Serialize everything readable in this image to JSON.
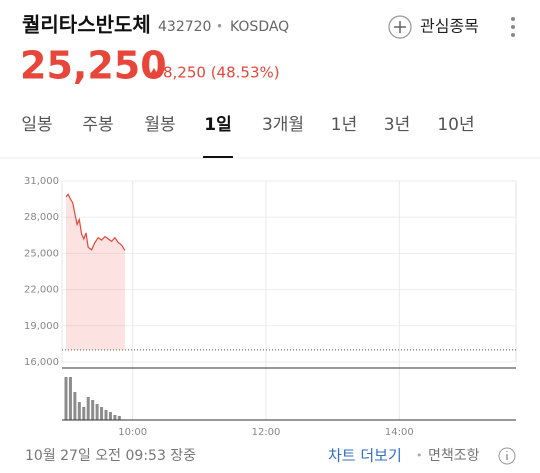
{
  "header": {
    "name": "퀄리타스반도체",
    "code": "432720",
    "separator": "•",
    "market": "KOSDAQ",
    "watch": "관심종목"
  },
  "price": {
    "current": "25,250",
    "change": "8,250 (48.53%)"
  },
  "tabs": [
    "일봉",
    "주봉",
    "월봉",
    "1일",
    "3개월",
    "1년",
    "3년",
    "10년"
  ],
  "selected_tab": 3,
  "chart_data": {
    "type": "line",
    "x": [
      540,
      542,
      544,
      546,
      548,
      550,
      552,
      554,
      556,
      558,
      560,
      563,
      566,
      569,
      572,
      575,
      578,
      581,
      584,
      587,
      590,
      593
    ],
    "series": [
      {
        "color": "#e8463b",
        "values": [
          29700,
          29900,
          29500,
          29200,
          28300,
          27400,
          27800,
          26600,
          26200,
          26700,
          25500,
          25300,
          25900,
          26300,
          26100,
          26400,
          26200,
          26000,
          26300,
          25900,
          25700,
          25250
        ]
      }
    ],
    "baseline": 17000,
    "xlim": [
      540,
      945
    ],
    "xticks": [
      {
        "value": 600,
        "label": "10:00"
      },
      {
        "value": 720,
        "label": "12:00"
      },
      {
        "value": 840,
        "label": "14:00"
      }
    ],
    "ylim": [
      16000,
      31000
    ],
    "yticks": [
      {
        "value": 31000,
        "label": "31,000"
      },
      {
        "value": 28000,
        "label": "28,000"
      },
      {
        "value": 25000,
        "label": "25,000"
      },
      {
        "value": 22000,
        "label": "22,000"
      },
      {
        "value": 19000,
        "label": "19,000"
      },
      {
        "value": 16000,
        "label": "16,000"
      }
    ],
    "grid": true,
    "volume": {
      "x": [
        540,
        544,
        548,
        552,
        556,
        560,
        564,
        568,
        572,
        576,
        580,
        584,
        588
      ],
      "values": [
        43,
        43,
        28,
        18,
        13,
        23,
        20,
        16,
        13,
        10,
        8,
        5,
        4
      ],
      "ylim": [
        0,
        50
      ],
      "color": "#8c8c8c"
    }
  },
  "footer": {
    "timestamp": "10월 27일 오전 09:53 장중",
    "more": "차트 더보기",
    "separator": "•",
    "disclaimer": "면책조항"
  }
}
